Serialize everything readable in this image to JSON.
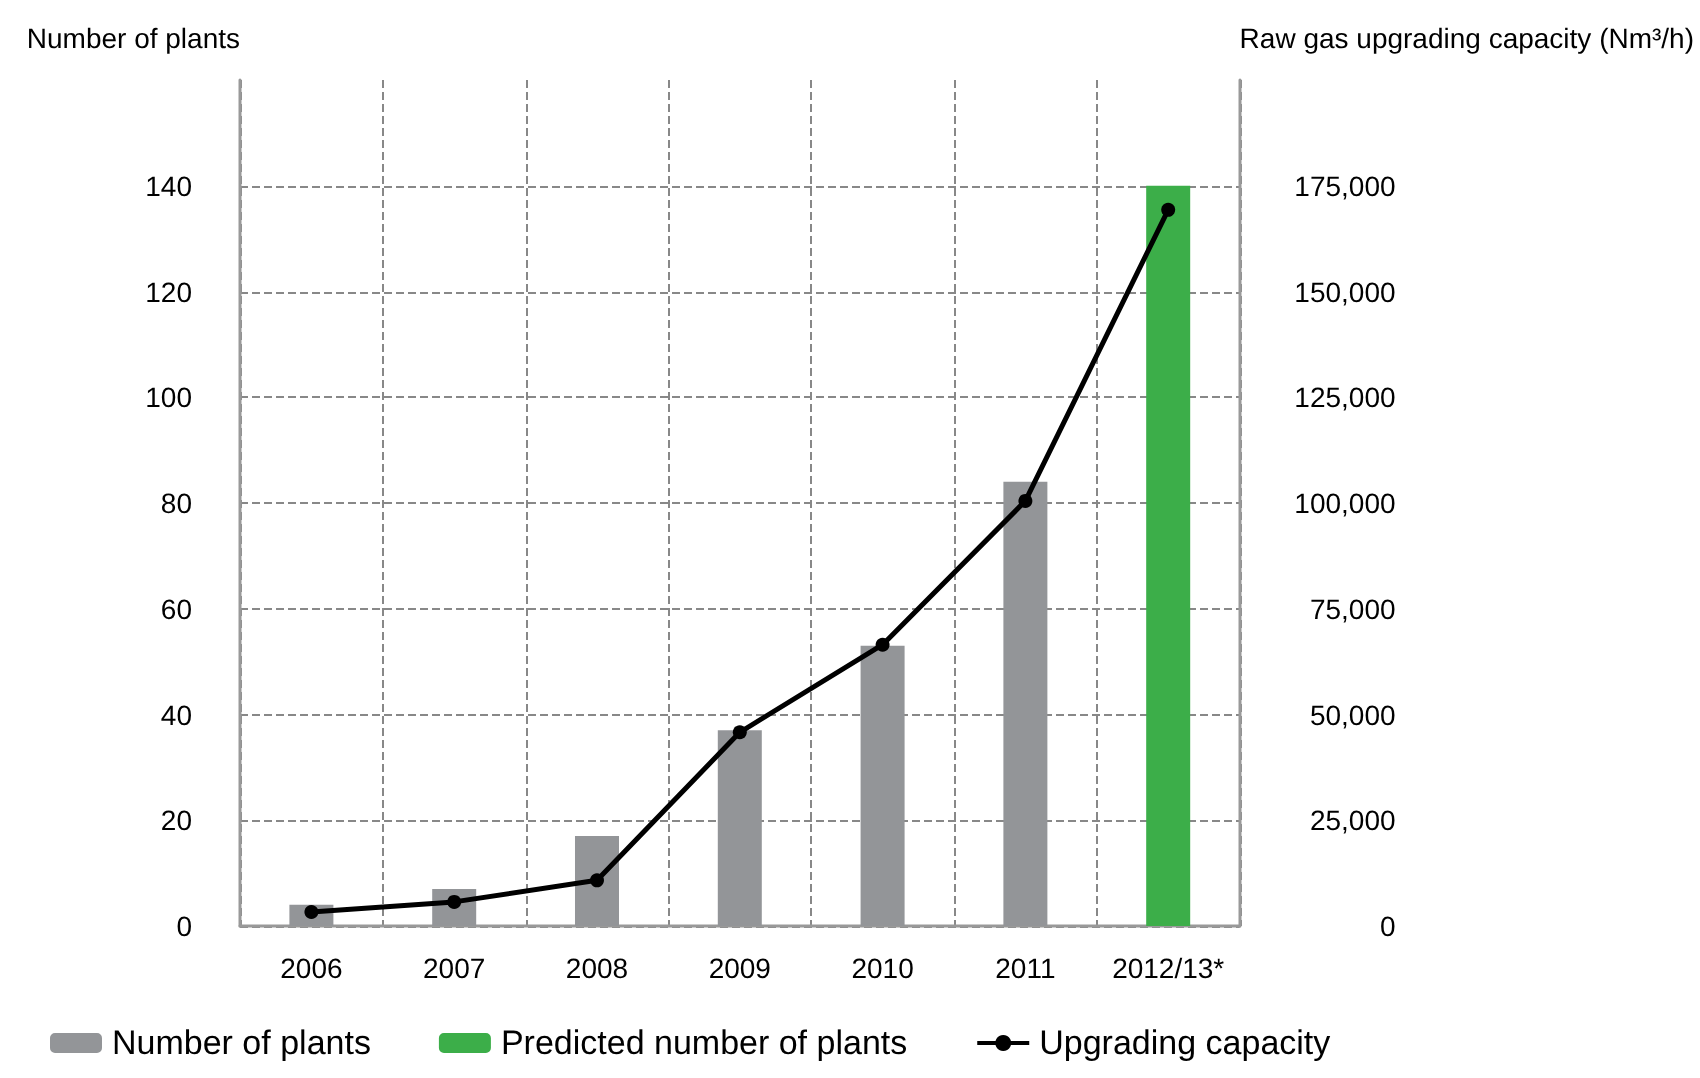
{
  "chart_data": {
    "type": "bar",
    "ylabel": "Number of plants",
    "y2label": "Raw gas upgrading capacity (Nm³/h)",
    "categories": [
      "2006",
      "2007",
      "2008",
      "2009",
      "2010",
      "2011",
      "2012/13*"
    ],
    "series": [
      {
        "name": "Number of plants",
        "color": "#939598",
        "values": [
          4,
          7,
          17,
          37,
          53,
          84,
          null
        ]
      },
      {
        "name": "Predicted number of plants",
        "color": "#3cae49",
        "values": [
          null,
          null,
          null,
          null,
          null,
          null,
          140
        ]
      },
      {
        "name": "Upgrading capacity",
        "type": "line",
        "axis": "y2",
        "color": "#000000",
        "values": [
          3300,
          5700,
          10800,
          45800,
          66500,
          100500,
          169300
        ]
      }
    ],
    "ylim": [
      0,
      160
    ],
    "yticks": [
      0,
      20,
      40,
      60,
      80,
      100,
      120,
      140
    ],
    "y2lim": [
      0,
      200000
    ],
    "y2ticks": [
      0,
      {
        "value": 25000,
        "label": "25,000"
      },
      {
        "value": 50000,
        "label": "50,000"
      },
      {
        "value": 75000,
        "label": "75,000"
      },
      {
        "value": 100000,
        "label": "100,000"
      },
      {
        "value": 125000,
        "label": "125,000"
      },
      {
        "value": 150000,
        "label": "150,000"
      },
      {
        "value": 175000,
        "label": "175,000"
      }
    ],
    "grid": true,
    "legend": "bottom left",
    "marker": "circle",
    "line_style": "solid"
  }
}
